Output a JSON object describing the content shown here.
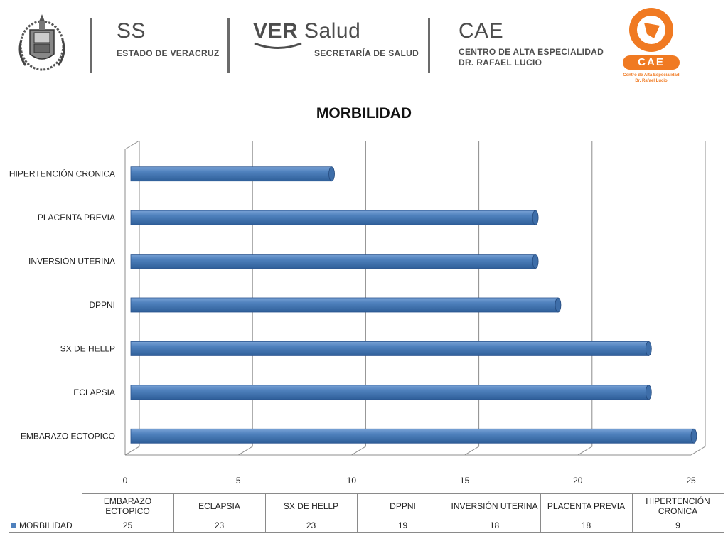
{
  "header": {
    "ss": {
      "big": "SS",
      "sub": "ESTADO DE VERACRUZ"
    },
    "ver": {
      "ver": "VER",
      "salud": "Salud",
      "sub": "SECRETARÍA DE SALUD"
    },
    "cae": {
      "big": "CAE",
      "sub1": "CENTRO DE ALTA ESPECIALIDAD",
      "sub2": "DR. RAFAEL LUCIO"
    },
    "cae_logo": {
      "badge": "CAE",
      "line1": "Centro de Alta Especialidad",
      "line2": "Dr. Rafael Lucio",
      "color": "#f07a22"
    },
    "seal": {
      "icon": "coat-of-arms-seal"
    }
  },
  "chart_data": {
    "type": "bar",
    "orientation": "horizontal",
    "title": "MORBILIDAD",
    "categories": [
      "EMBARAZO ECTOPICO",
      "ECLAPSIA",
      "SX DE HELLP",
      "DPPNI",
      "INVERSIÓN UTERINA",
      "PLACENTA PREVIA",
      "HIPERTENCIÓN CRONICA"
    ],
    "series": [
      {
        "name": "MORBILIDAD",
        "values": [
          25,
          23,
          23,
          19,
          18,
          18,
          9
        ],
        "color": "#4f81bd"
      }
    ],
    "xlim": [
      0,
      25
    ],
    "xticks": [
      "0",
      "5",
      "10",
      "15",
      "20",
      "25"
    ],
    "grid": true,
    "data_table": true
  },
  "table": {
    "headers": [
      "EMBARAZO ECTOPICO",
      "ECLAPSIA",
      "SX DE HELLP",
      "DPPNI",
      "INVERSIÓN UTERINA",
      "PLACENTA PREVIA",
      "HIPERTENCIÓN CRONICA"
    ],
    "row_label": "MORBILIDAD",
    "values": [
      "25",
      "23",
      "23",
      "19",
      "18",
      "18",
      "9"
    ]
  }
}
